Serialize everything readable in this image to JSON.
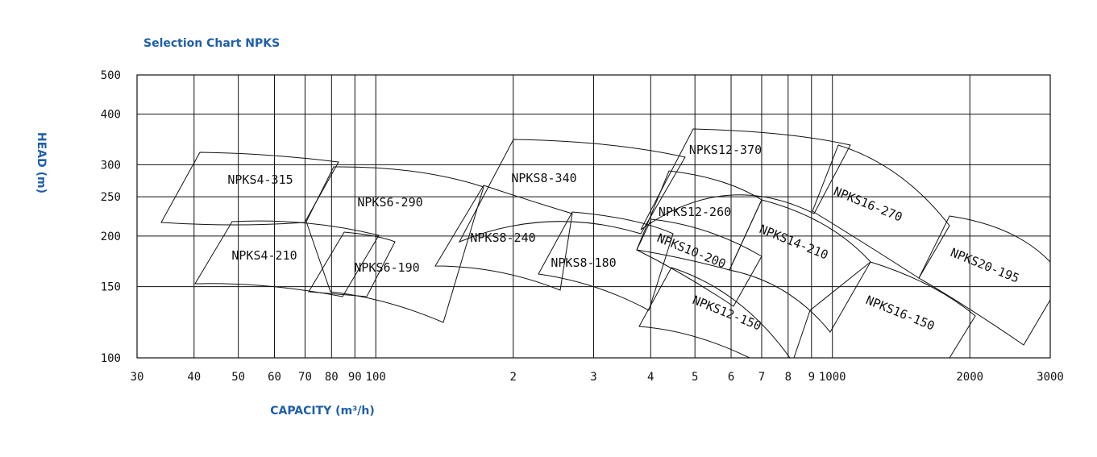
{
  "chart_data": {
    "type": "area",
    "title": "Selection Chart NPKS",
    "xlabel": "CAPACITY (m³/h)",
    "ylabel": "HEAD (m)",
    "xscale": "log",
    "yscale": "log",
    "grid": true,
    "xlim": [
      30,
      3000
    ],
    "xticks": [
      30,
      40,
      50,
      60,
      70,
      80,
      90,
      100,
      {
        "value": 200,
        "label": "2"
      },
      {
        "value": 300,
        "label": "3"
      },
      {
        "value": 400,
        "label": "4"
      },
      {
        "value": 500,
        "label": "5"
      },
      {
        "value": 600,
        "label": "6"
      },
      {
        "value": 700,
        "label": "7"
      },
      {
        "value": 800,
        "label": "8"
      },
      {
        "value": 900,
        "label": "9"
      },
      1000,
      2000,
      3000
    ],
    "ylim": [
      100,
      500
    ],
    "yticks": [
      100,
      150,
      200,
      250,
      300,
      400,
      500
    ],
    "annotations": [
      "NPKS4-315",
      "NPKS6-290",
      "NPKS4-210",
      "NPKS6-190",
      "NPKS8-340",
      "NPKS8-240",
      "NPKS8-180",
      "NPKS12-370",
      "NPKS12-260",
      "NPKS10-200",
      "NPKS14-210",
      "NPKS12-150",
      "NPKS16-270",
      "NPKS16-150",
      "NPKS20-195"
    ]
  }
}
